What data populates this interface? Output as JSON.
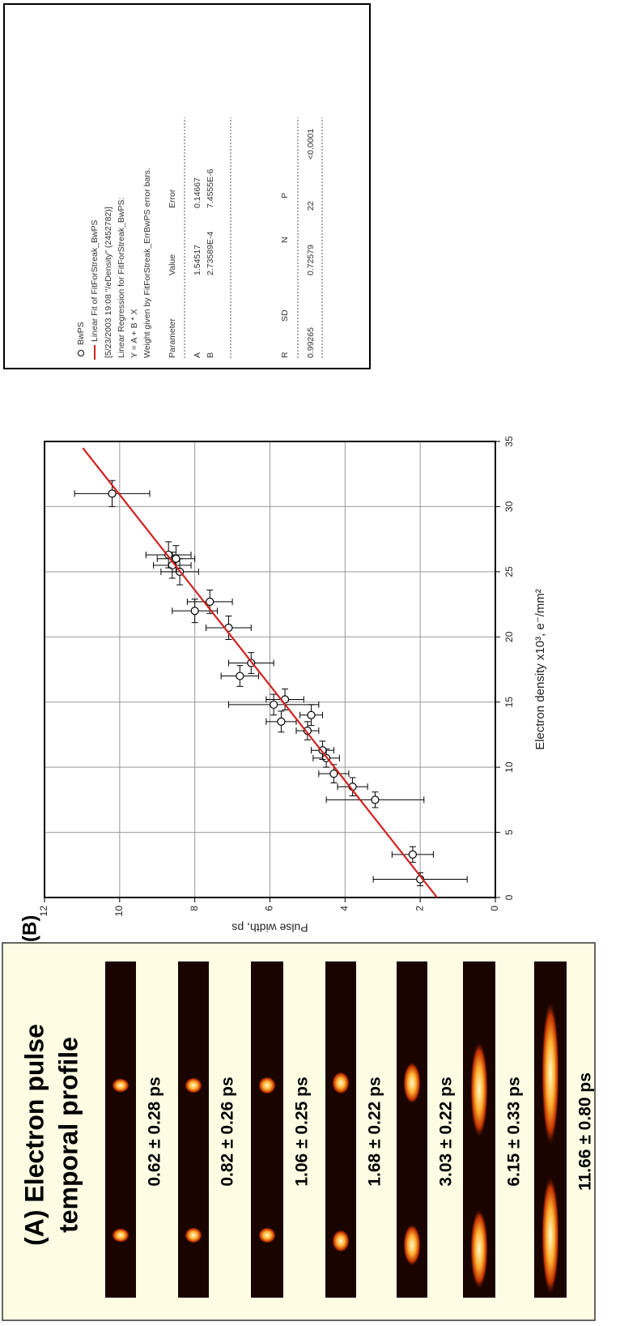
{
  "panel_a": {
    "title": [
      "(A) Electron pulse",
      "temporal profile"
    ],
    "labels": [
      "0.62 ± 0.28 ps",
      "0.82 ± 0.26 ps",
      "1.06 ± 0.25 ps",
      "1.68 ± 0.22 ps",
      "3.03 ± 0.22 ps",
      "6.15 ± 0.33 ps",
      "11.66 ± 0.80 ps"
    ]
  },
  "chart_data": {
    "type": "scatter",
    "panel_label": "(B)",
    "xlabel": "Electron density x10³, e⁻/mm²",
    "ylabel": "Pulse width, ps",
    "xlim": [
      0,
      35
    ],
    "ylim": [
      0,
      12
    ],
    "xticks": [
      0,
      5,
      10,
      15,
      20,
      25,
      30,
      35
    ],
    "yticks": [
      0,
      2,
      4,
      6,
      8,
      10,
      12
    ],
    "grid": true,
    "series": [
      {
        "name": "BwPS",
        "color": "#000000",
        "x": [
          1.4,
          3.3,
          7.5,
          8.5,
          9.5,
          10.7,
          11.3,
          12.8,
          13.5,
          14.0,
          14.8,
          15.2,
          17.0,
          18.0,
          20.7,
          22.0,
          22.7,
          25.0,
          25.5,
          26.0,
          26.3,
          31.0
        ],
        "values": [
          2.0,
          2.2,
          3.2,
          3.8,
          4.3,
          4.5,
          4.6,
          5.0,
          5.7,
          4.9,
          5.9,
          5.6,
          6.8,
          6.5,
          7.1,
          8.0,
          7.6,
          8.4,
          8.6,
          8.5,
          8.7,
          10.2
        ],
        "xerr": [
          0.5,
          0.6,
          0.6,
          0.7,
          0.7,
          0.7,
          0.7,
          0.7,
          0.8,
          0.8,
          0.8,
          0.8,
          0.8,
          0.8,
          0.9,
          0.9,
          0.9,
          1.0,
          1.0,
          1.0,
          1.0,
          1.0
        ],
        "yerr": [
          1.25,
          0.55,
          1.3,
          0.4,
          0.4,
          0.35,
          0.3,
          0.3,
          0.4,
          0.3,
          1.2,
          0.5,
          0.5,
          0.6,
          0.6,
          0.6,
          0.6,
          0.5,
          0.5,
          0.5,
          0.6,
          1.0
        ]
      },
      {
        "name": "Linear Fit of FitForStreak_BwPS",
        "color": "#d42020",
        "x": [
          0,
          34.5
        ],
        "values": [
          1.55,
          10.98
        ]
      }
    ]
  },
  "fit_report": {
    "lines": [
      "[5/23/2003 19:08 \"/eDensity\" (2452782)]",
      "Linear Regression for FitForStreak_BwPS:",
      "Y = A + B * X",
      "Weight given by FitForStreak_ErrBwPS error bars."
    ],
    "table1": {
      "header": [
        "Parameter",
        "Value",
        "Error"
      ],
      "rows": [
        [
          "A",
          "1.54517",
          "0.14667"
        ],
        [
          "B",
          "2.73589E-4",
          "7.4555E-6"
        ]
      ]
    },
    "table2": {
      "header": [
        "R",
        "SD",
        "N",
        "P"
      ],
      "rows": [
        [
          "0.99265",
          "0.72579",
          "22",
          "<0.0001"
        ]
      ]
    }
  }
}
